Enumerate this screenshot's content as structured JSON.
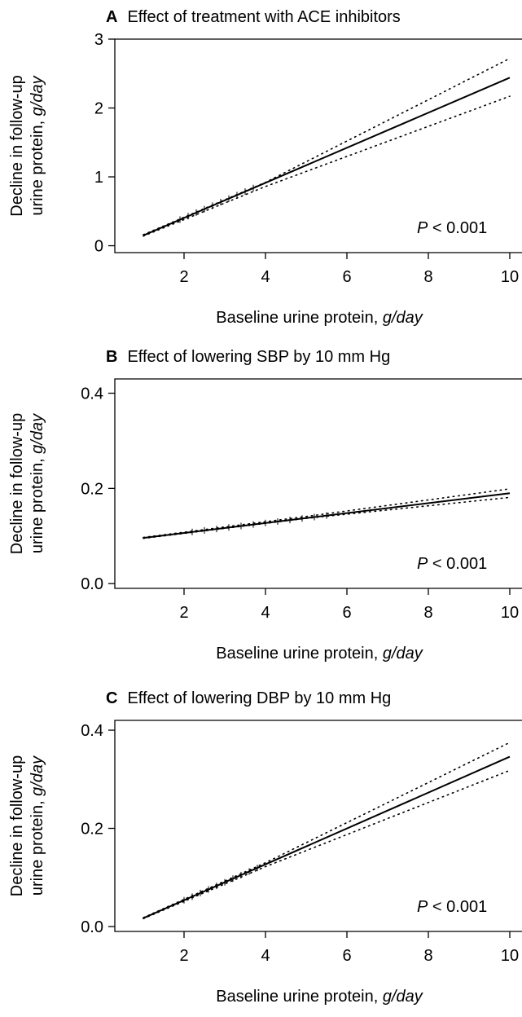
{
  "chart_data": [
    {
      "type": "line",
      "panel": "A",
      "title": "Effect of treatment with ACE inhibitors",
      "xlabel": "Baseline urine protein,",
      "xlabel_unit": "g/day",
      "ylabel": "Decline in follow-up urine protein,",
      "ylabel_unit": "g/day",
      "xlim": [
        0.3,
        10.3
      ],
      "ylim": [
        -0.1,
        3.0
      ],
      "xticks": [
        2,
        4,
        6,
        8,
        10
      ],
      "yticks": [
        0,
        1,
        2,
        3
      ],
      "ytick_labels": [
        "0",
        "1",
        "2",
        "3"
      ],
      "annotation": {
        "italic": "P",
        "rest": " < 0.001"
      },
      "series": [
        {
          "role": "estimate",
          "style": "solid",
          "x": [
            1,
            10
          ],
          "y": [
            0.15,
            2.44
          ]
        },
        {
          "role": "upper",
          "style": "dotted",
          "x": [
            1,
            4,
            10
          ],
          "y": [
            0.16,
            0.92,
            2.72
          ]
        },
        {
          "role": "lower",
          "style": "dotted",
          "x": [
            1,
            4,
            10
          ],
          "y": [
            0.14,
            0.86,
            2.17
          ]
        }
      ],
      "rug_x": [
        1.9,
        2.1,
        2.3,
        2.5,
        2.7,
        2.9,
        3.1,
        3.3,
        3.5,
        3.7
      ]
    },
    {
      "type": "line",
      "panel": "B",
      "title": "Effect of lowering SBP by 10 mm Hg",
      "xlabel": "Baseline urine protein,",
      "xlabel_unit": "g/day",
      "ylabel": "Decline in follow-up urine protein,",
      "ylabel_unit": "g/day",
      "xlim": [
        0.3,
        10.3
      ],
      "ylim": [
        -0.01,
        0.43
      ],
      "xticks": [
        2,
        4,
        6,
        8,
        10
      ],
      "yticks": [
        0,
        0.2,
        0.4
      ],
      "ytick_labels": [
        "0.0",
        "0.2",
        "0.4"
      ],
      "annotation": {
        "italic": "P",
        "rest": " < 0.001"
      },
      "series": [
        {
          "role": "estimate",
          "style": "solid",
          "x": [
            1,
            10
          ],
          "y": [
            0.096,
            0.19
          ]
        },
        {
          "role": "upper",
          "style": "dotted",
          "x": [
            1,
            5,
            10
          ],
          "y": [
            0.097,
            0.141,
            0.199
          ]
        },
        {
          "role": "lower",
          "style": "dotted",
          "x": [
            1,
            5,
            10
          ],
          "y": [
            0.095,
            0.137,
            0.181
          ]
        }
      ],
      "rug_x": [
        2.2,
        2.5,
        2.8,
        3.1,
        3.4,
        3.7,
        4.0,
        4.3,
        4.6,
        4.9,
        5.2,
        5.5
      ]
    },
    {
      "type": "line",
      "panel": "C",
      "title": "Effect of lowering DBP by 10 mm Hg",
      "xlabel": "Baseline urine protein,",
      "xlabel_unit": "g/day",
      "ylabel": "Decline in follow-up urine protein,",
      "ylabel_unit": "g/day",
      "xlim": [
        0.3,
        10.3
      ],
      "ylim": [
        -0.01,
        0.42
      ],
      "xticks": [
        2,
        4,
        6,
        8,
        10
      ],
      "yticks": [
        0,
        0.2,
        0.4
      ],
      "ytick_labels": [
        "0.0",
        "0.2",
        "0.4"
      ],
      "annotation": {
        "italic": "P",
        "rest": " < 0.001"
      },
      "series": [
        {
          "role": "estimate",
          "style": "solid",
          "x": [
            1,
            10
          ],
          "y": [
            0.017,
            0.346
          ]
        },
        {
          "role": "upper",
          "style": "dotted",
          "x": [
            1,
            4,
            10
          ],
          "y": [
            0.018,
            0.13,
            0.375
          ]
        },
        {
          "role": "lower",
          "style": "dotted",
          "x": [
            1,
            4,
            10
          ],
          "y": [
            0.016,
            0.122,
            0.318
          ]
        }
      ],
      "rug_x": [
        2.0,
        2.2,
        2.4,
        2.6,
        2.8,
        3.0,
        3.2,
        3.4,
        3.6,
        3.8
      ]
    }
  ]
}
